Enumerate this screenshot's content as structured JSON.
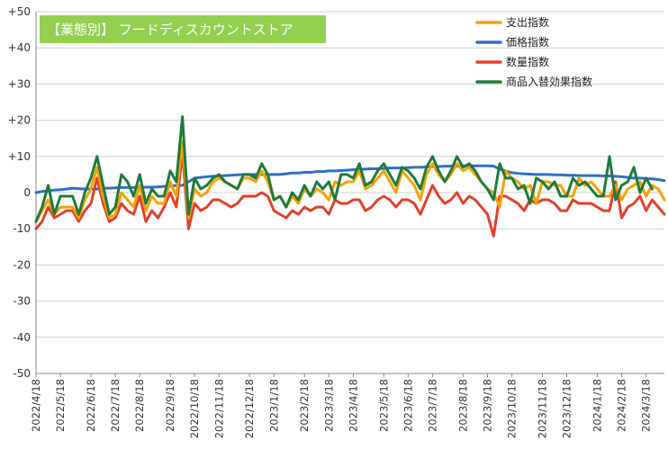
{
  "chart_data": {
    "type": "line",
    "title": "【業態別】 フードディスカウントストア",
    "title_bg": "#92d050",
    "ylim": [
      -50,
      50
    ],
    "yticks": [
      {
        "value": 50,
        "label": "+50"
      },
      {
        "value": 40,
        "label": "+40"
      },
      {
        "value": 30,
        "label": "+30"
      },
      {
        "value": 20,
        "label": "+20"
      },
      {
        "value": 10,
        "label": "+10"
      },
      {
        "value": 0,
        "label": "0"
      },
      {
        "value": -10,
        "label": "-10"
      },
      {
        "value": -20,
        "label": "-20"
      },
      {
        "value": -30,
        "label": "-30"
      },
      {
        "value": -40,
        "label": "-40"
      },
      {
        "value": -50,
        "label": "-50"
      }
    ],
    "grid": true,
    "legend_position": "top-right",
    "x_start": "2022/4/18",
    "x_interval_days": 7,
    "xticks": [
      {
        "index": 0,
        "label": "2022/4/18"
      },
      {
        "index": 4,
        "label": "2022/5/18"
      },
      {
        "index": 9,
        "label": "2022/6/18"
      },
      {
        "index": 13,
        "label": "2022/7/18"
      },
      {
        "index": 17,
        "label": "2022/8/18"
      },
      {
        "index": 22,
        "label": "2022/9/18"
      },
      {
        "index": 26,
        "label": "2022/10/18"
      },
      {
        "index": 30,
        "label": "2022/11/18"
      },
      {
        "index": 35,
        "label": "2022/12/18"
      },
      {
        "index": 39,
        "label": "2023/1/18"
      },
      {
        "index": 44,
        "label": "2023/2/18"
      },
      {
        "index": 48,
        "label": "2023/3/18"
      },
      {
        "index": 52,
        "label": "2023/4/18"
      },
      {
        "index": 57,
        "label": "2023/5/18"
      },
      {
        "index": 61,
        "label": "2023/6/18"
      },
      {
        "index": 65,
        "label": "2023/7/18"
      },
      {
        "index": 70,
        "label": "2023/8/18"
      },
      {
        "index": 74,
        "label": "2023/9/18"
      },
      {
        "index": 78,
        "label": "2023/10/18"
      },
      {
        "index": 83,
        "label": "2023/11/18"
      },
      {
        "index": 87,
        "label": "2023/12/18"
      },
      {
        "index": 92,
        "label": "2024/1/18"
      },
      {
        "index": 96,
        "label": "2024/2/18"
      },
      {
        "index": 100,
        "label": "2024/3/18"
      }
    ],
    "series": [
      {
        "name": "支出指数",
        "color": "#f4a300",
        "values": [
          -8,
          -5,
          -2,
          -6,
          -4,
          -4,
          -4,
          -7,
          -2,
          1,
          7,
          -1,
          -7,
          -6,
          0,
          -2,
          -4,
          2,
          -5,
          -1,
          -3,
          -3,
          3,
          -1,
          14,
          -7,
          1,
          -1,
          0,
          3,
          4,
          3,
          2,
          1,
          4,
          4,
          3,
          6,
          3,
          -2,
          -1,
          -4,
          -1,
          -3,
          1,
          -1,
          1,
          0,
          -2,
          3,
          2,
          3,
          3,
          6,
          1,
          2,
          4,
          6,
          3,
          0,
          6,
          4,
          2,
          -2,
          5,
          8,
          5,
          3,
          5,
          8,
          6,
          7,
          5,
          3,
          1,
          0,
          -4,
          6,
          4,
          3,
          1,
          2,
          -3,
          3,
          3,
          2,
          2,
          -1,
          -1,
          4,
          2,
          3,
          1,
          -1,
          -1,
          2,
          -2,
          1,
          2,
          3,
          -1,
          2,
          1,
          -2
        ]
      },
      {
        "name": "価格指数",
        "color": "#2e6fc6",
        "values": [
          0,
          0.3,
          0.5,
          0.7,
          0.8,
          1,
          1.2,
          1.1,
          1,
          1,
          1,
          1.2,
          1.2,
          1.3,
          1.4,
          1.4,
          1.4,
          1.4,
          1.5,
          1.5,
          1.6,
          1.7,
          1.8,
          2,
          2,
          3,
          4,
          4.2,
          4.4,
          4.5,
          4.6,
          4.7,
          4.8,
          4.9,
          5,
          5,
          5,
          5,
          5,
          5,
          5,
          5.2,
          5.4,
          5.4,
          5.6,
          5.6,
          5.8,
          5.8,
          6,
          6,
          6.1,
          6.2,
          6.3,
          6.4,
          6.5,
          6.6,
          6.6,
          6.7,
          6.8,
          6.8,
          6.8,
          6.9,
          7,
          7,
          7.1,
          7.2,
          7.2,
          7.3,
          7.3,
          7.3,
          7.4,
          7.4,
          7.4,
          7.4,
          7.4,
          7.3,
          6.5,
          6,
          5.5,
          5.3,
          5.2,
          5.1,
          5,
          5,
          5,
          4.9,
          4.9,
          4.8,
          4.8,
          4.7,
          4.7,
          4.7,
          4.7,
          4.6,
          4.6,
          4.5,
          4.4,
          4.2,
          4,
          4,
          3.9,
          3.8,
          3.6,
          3.3
        ]
      },
      {
        "name": "数量指数",
        "color": "#e0412c",
        "values": [
          -10,
          -8,
          -4,
          -7,
          -6,
          -5,
          -5,
          -8,
          -5,
          -3,
          4,
          -3,
          -8,
          -7,
          -3,
          -5,
          -6,
          -1,
          -8,
          -5,
          -7,
          -4,
          0,
          -4,
          11,
          -10,
          -3,
          -5,
          -4,
          -2,
          -2,
          -3,
          -4,
          -3,
          -1,
          -1,
          -1,
          0,
          -1,
          -5,
          -6,
          -7,
          -5,
          -6,
          -4,
          -5,
          -4,
          -4,
          -6,
          -2,
          -3,
          -3,
          -2,
          -2,
          -5,
          -4,
          -2,
          -1,
          -2,
          -4,
          -2,
          -2,
          -3,
          -6,
          -2,
          2,
          -1,
          -3,
          -2,
          0,
          -3,
          -1,
          -2,
          -4,
          -6,
          -12,
          -1,
          -1,
          -2,
          -3,
          -5,
          -2,
          -3,
          -2,
          -2,
          -3,
          -5,
          -5,
          -2,
          -3,
          -3,
          -3,
          -4,
          -5,
          -5,
          3,
          -7,
          -4,
          -3,
          -1,
          -5,
          -2,
          -4,
          -6
        ]
      },
      {
        "name": "商品入替効果指数",
        "color": "#217a3c",
        "values": [
          -8,
          -4,
          2,
          -6,
          -1,
          -1,
          -1,
          -6,
          0,
          4,
          10,
          2,
          -6,
          -4,
          5,
          3,
          -1,
          5,
          -3,
          1,
          -1,
          -1,
          6,
          3,
          21,
          -6,
          4,
          1,
          2,
          4,
          5,
          3,
          2,
          1,
          5,
          5,
          4,
          8,
          5,
          -2,
          -1,
          -4,
          0,
          -2,
          2,
          -1,
          3,
          1,
          3,
          -2,
          5,
          5,
          4,
          8,
          2,
          3,
          6,
          8,
          5,
          2,
          7,
          6,
          4,
          1,
          7,
          10,
          6,
          3,
          6,
          10,
          7,
          8,
          6,
          3,
          1,
          -2,
          8,
          4,
          4,
          1,
          2,
          -3,
          4,
          3,
          1,
          3,
          -1,
          -1,
          4,
          2,
          3,
          1,
          -1,
          -1,
          10,
          -2,
          2,
          3,
          7,
          0,
          4,
          1
        ]
      }
    ]
  }
}
